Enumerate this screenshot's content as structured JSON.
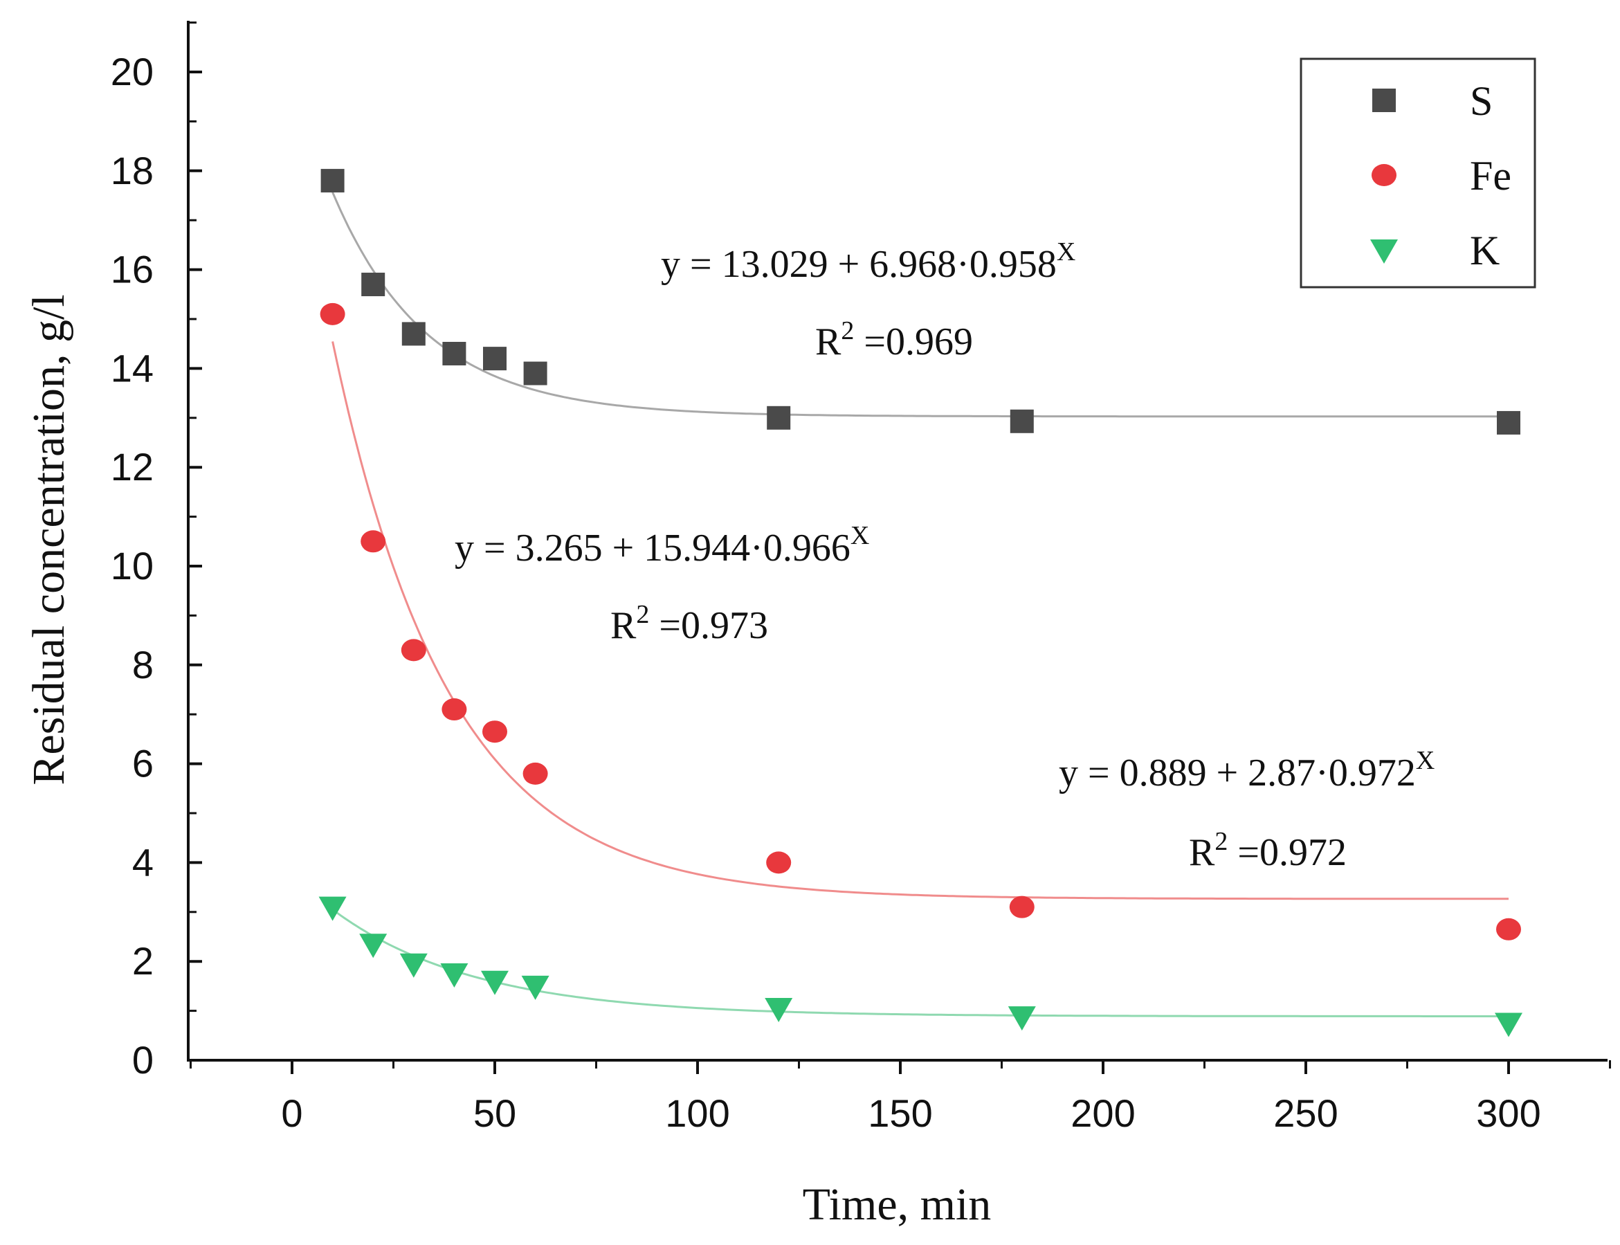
{
  "chart_data": {
    "type": "scatter",
    "xlabel": "Time, min",
    "ylabel": "Residual concentration, g/l",
    "xlim": [
      -25,
      325
    ],
    "ylim": [
      0,
      21
    ],
    "x_ticks": [
      0,
      50,
      100,
      150,
      200,
      250,
      300
    ],
    "y_ticks": [
      0,
      2,
      4,
      6,
      8,
      10,
      12,
      14,
      16,
      18,
      20
    ],
    "legend_position": "top-right",
    "series": [
      {
        "name": "S",
        "marker": "square",
        "color": "#4a4a4a",
        "fit_color": "#a8a8a8",
        "x": [
          10,
          20,
          30,
          40,
          50,
          60,
          120,
          180,
          300
        ],
        "y": [
          17.8,
          15.7,
          14.7,
          14.3,
          14.2,
          13.9,
          13.0,
          12.93,
          12.9
        ],
        "fit": {
          "a": 13.029,
          "b": 6.968,
          "c": 0.958
        },
        "equation": {
          "main": "y = 13.029 + 6.968·0.958",
          "sup": "X",
          "r2_base": "R",
          "r2_sup": "2",
          "r2_value": " =0.969"
        }
      },
      {
        "name": "Fe",
        "marker": "circle",
        "color": "#e8383d",
        "fit_color": "#f08c8c",
        "x": [
          10,
          20,
          30,
          40,
          50,
          60,
          120,
          180,
          300
        ],
        "y": [
          15.1,
          10.5,
          8.3,
          7.1,
          6.65,
          5.8,
          4.0,
          3.1,
          2.65
        ],
        "fit": {
          "a": 3.265,
          "b": 15.944,
          "c": 0.966
        },
        "equation": {
          "main": "y = 3.265 + 15.944·0.966",
          "sup": "X",
          "r2_base": "R",
          "r2_sup": "2",
          "r2_value": " =0.973"
        }
      },
      {
        "name": "K",
        "marker": "triangle-down",
        "color": "#2fbf71",
        "fit_color": "#8fd9b0",
        "x": [
          10,
          20,
          30,
          40,
          50,
          60,
          120,
          180,
          300
        ],
        "y": [
          3.1,
          2.35,
          1.95,
          1.75,
          1.6,
          1.5,
          1.05,
          0.88,
          0.75
        ],
        "fit": {
          "a": 0.889,
          "b": 2.87,
          "c": 0.972
        },
        "equation": {
          "main": "y = 0.889 + 2.87·0.972",
          "sup": "X",
          "r2_base": "R",
          "r2_sup": "2",
          "r2_value": " =0.972"
        }
      }
    ]
  }
}
